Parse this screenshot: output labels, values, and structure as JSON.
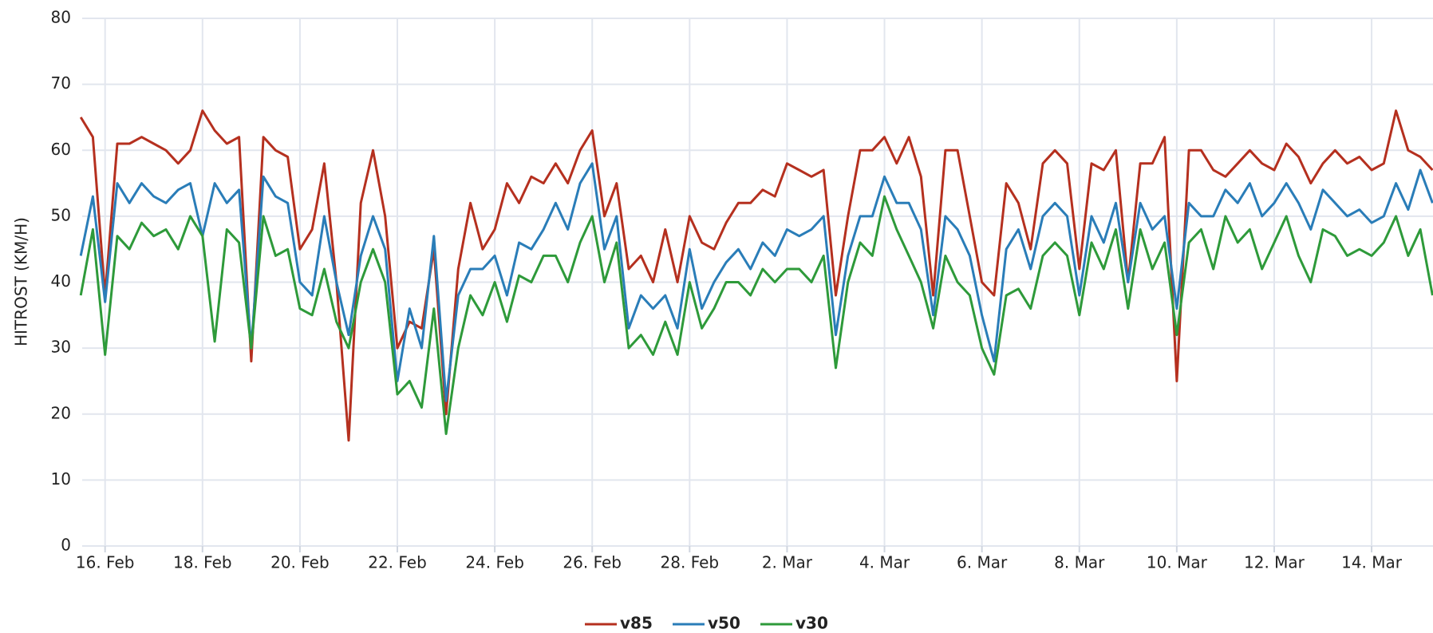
{
  "chart_data": {
    "type": "line",
    "y_label": "HITROST (KM/H)",
    "x": [
      -0.5,
      -0.25,
      0,
      0.25,
      0.5,
      0.75,
      1,
      1.25,
      1.5,
      1.75,
      2,
      2.25,
      2.5,
      2.75,
      3,
      3.25,
      3.5,
      3.75,
      4,
      4.25,
      4.5,
      4.75,
      5,
      5.25,
      5.5,
      5.75,
      6,
      6.25,
      6.5,
      6.75,
      7,
      7.25,
      7.5,
      7.75,
      8,
      8.25,
      8.5,
      8.75,
      9,
      9.25,
      9.5,
      9.75,
      10,
      10.25,
      10.5,
      10.75,
      11,
      11.25,
      11.5,
      11.75,
      12,
      12.25,
      12.5,
      12.75,
      13,
      13.25,
      13.5,
      13.75,
      14,
      14.25,
      14.5,
      14.75,
      15,
      15.25,
      15.5,
      15.75,
      16,
      16.25,
      16.5,
      16.75,
      17,
      17.25,
      17.5,
      17.75,
      18,
      18.25,
      18.5,
      18.75,
      19,
      19.25,
      19.5,
      19.75,
      20,
      20.25,
      20.5,
      20.75,
      21,
      21.25,
      21.5,
      21.75,
      22,
      22.25,
      22.5,
      22.75,
      23,
      23.25,
      23.5,
      23.75,
      24,
      24.25,
      24.5,
      24.75,
      25,
      25.25,
      25.5,
      25.75,
      26,
      26.25,
      26.5,
      26.75,
      27,
      27.25
    ],
    "series": [
      {
        "name": "v85",
        "color": "#b5301f",
        "values": [
          65,
          62,
          38,
          61,
          61,
          62,
          61,
          60,
          58,
          60,
          66,
          63,
          61,
          62,
          28,
          62,
          60,
          59,
          45,
          48,
          58,
          40,
          16,
          52,
          60,
          50,
          30,
          34,
          33,
          45,
          20,
          42,
          52,
          45,
          48,
          55,
          52,
          56,
          55,
          58,
          55,
          60,
          63,
          50,
          55,
          42,
          44,
          40,
          48,
          40,
          50,
          46,
          45,
          49,
          52,
          52,
          54,
          53,
          58,
          57,
          56,
          57,
          38,
          50,
          60,
          60,
          62,
          58,
          62,
          56,
          38,
          60,
          60,
          50,
          40,
          38,
          55,
          52,
          45,
          58,
          60,
          58,
          42,
          58,
          57,
          60,
          40,
          58,
          58,
          62,
          25,
          60,
          60,
          57,
          56,
          58,
          60,
          58,
          57,
          61,
          59,
          55,
          58,
          60,
          58,
          59,
          57,
          58,
          66,
          60,
          59,
          57
        ]
      },
      {
        "name": "v50",
        "color": "#2a7db8",
        "values": [
          44,
          53,
          37,
          55,
          52,
          55,
          53,
          52,
          54,
          55,
          47,
          55,
          52,
          54,
          30,
          56,
          53,
          52,
          40,
          38,
          50,
          40,
          32,
          44,
          50,
          45,
          25,
          36,
          30,
          47,
          22,
          38,
          42,
          42,
          44,
          38,
          46,
          45,
          48,
          52,
          48,
          55,
          58,
          45,
          50,
          33,
          38,
          36,
          38,
          33,
          45,
          36,
          40,
          43,
          45,
          42,
          46,
          44,
          48,
          47,
          48,
          50,
          32,
          44,
          50,
          50,
          56,
          52,
          52,
          48,
          35,
          50,
          48,
          44,
          35,
          28,
          45,
          48,
          42,
          50,
          52,
          50,
          38,
          50,
          46,
          52,
          40,
          52,
          48,
          50,
          36,
          52,
          50,
          50,
          54,
          52,
          55,
          50,
          52,
          55,
          52,
          48,
          54,
          52,
          50,
          51,
          49,
          50,
          55,
          51,
          57,
          52
        ]
      },
      {
        "name": "v30",
        "color": "#2e9a3a",
        "values": [
          38,
          48,
          29,
          47,
          45,
          49,
          47,
          48,
          45,
          50,
          47,
          31,
          48,
          46,
          30,
          50,
          44,
          45,
          36,
          35,
          42,
          34,
          30,
          40,
          45,
          40,
          23,
          25,
          21,
          36,
          17,
          30,
          38,
          35,
          40,
          34,
          41,
          40,
          44,
          44,
          40,
          46,
          50,
          40,
          46,
          30,
          32,
          29,
          34,
          29,
          40,
          33,
          36,
          40,
          40,
          38,
          42,
          40,
          42,
          42,
          40,
          44,
          27,
          40,
          46,
          44,
          53,
          48,
          44,
          40,
          33,
          44,
          40,
          38,
          30,
          26,
          38,
          39,
          36,
          44,
          46,
          44,
          35,
          46,
          42,
          48,
          36,
          48,
          42,
          46,
          32,
          46,
          48,
          42,
          50,
          46,
          48,
          42,
          46,
          50,
          44,
          40,
          48,
          47,
          44,
          45,
          44,
          46,
          50,
          44,
          48,
          38
        ]
      }
    ],
    "xlim": [
      -0.47,
      27.26
    ],
    "xticks": [
      {
        "value": 0,
        "label": "16. Feb"
      },
      {
        "value": 2,
        "label": "18. Feb"
      },
      {
        "value": 4,
        "label": "20. Feb"
      },
      {
        "value": 6,
        "label": "22. Feb"
      },
      {
        "value": 8,
        "label": "24. Feb"
      },
      {
        "value": 10,
        "label": "26. Feb"
      },
      {
        "value": 12,
        "label": "28. Feb"
      },
      {
        "value": 14,
        "label": "2. Mar"
      },
      {
        "value": 16,
        "label": "4. Mar"
      },
      {
        "value": 18,
        "label": "6. Mar"
      },
      {
        "value": 20,
        "label": "8. Mar"
      },
      {
        "value": 22,
        "label": "10. Mar"
      },
      {
        "value": 24,
        "label": "12. Mar"
      },
      {
        "value": 26,
        "label": "14. Mar"
      }
    ],
    "ylim": [
      0,
      80
    ],
    "yticks": [
      0,
      10,
      20,
      30,
      40,
      50,
      60,
      70,
      80
    ],
    "grid": true
  }
}
